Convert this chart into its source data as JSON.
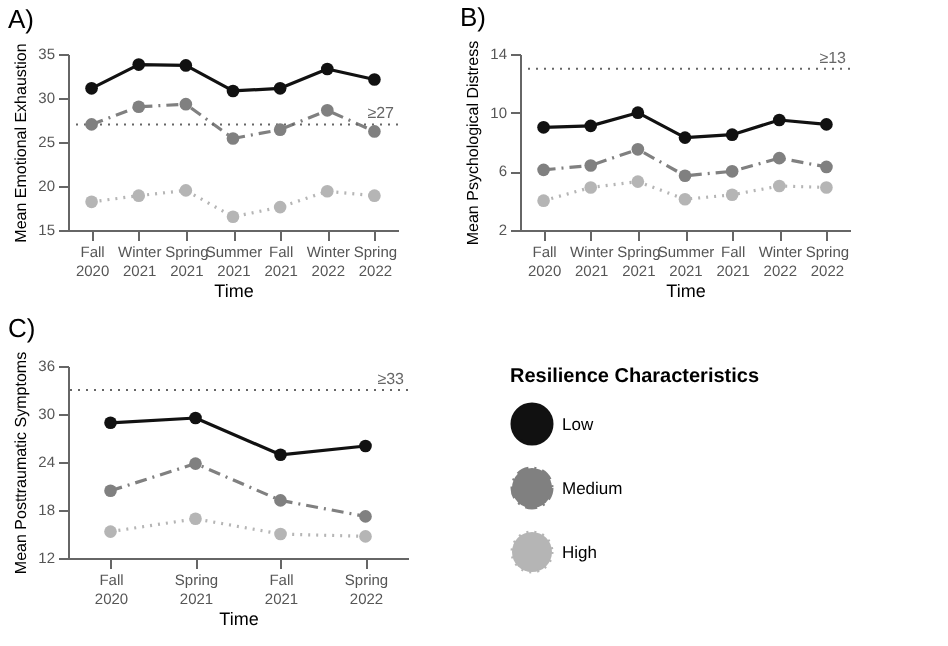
{
  "chart_data": [
    {
      "type": "line",
      "title": "A)",
      "xlabel": "Time",
      "ylabel": "Mean Emotional Exhaustion",
      "categories": [
        "Fall 2020",
        "Winter 2021",
        "Spring 2021",
        "Summer 2021",
        "Fall 2021",
        "Winter 2022",
        "Spring 2022"
      ],
      "ylim": [
        15,
        35
      ],
      "yticks": [
        15,
        20,
        25,
        30,
        35
      ],
      "grid": false,
      "marker": "circle",
      "legend": false,
      "ref_lines": [
        {
          "axis": "y",
          "value": 27,
          "label": "≥27",
          "color": "#666666",
          "line_style": "dotted"
        }
      ],
      "series": [
        {
          "color": "#111111",
          "line_style": "solid",
          "values": [
            31.1,
            33.8,
            33.7,
            30.8,
            31.1,
            33.3,
            32.1
          ]
        },
        {
          "color": "#808080",
          "line_style": "dashed",
          "values": [
            27.0,
            29.0,
            29.3,
            25.4,
            26.4,
            28.6,
            26.2
          ]
        },
        {
          "color": "#b5b5b5",
          "line_style": "dotted",
          "values": [
            18.2,
            18.9,
            19.5,
            16.5,
            17.6,
            19.4,
            18.9
          ]
        }
      ]
    },
    {
      "type": "line",
      "title": "B)",
      "xlabel": "Time",
      "ylabel": "Mean Psychological Distress",
      "categories": [
        "Fall 2020",
        "Winter 2021",
        "Spring 2021",
        "Summer 2021",
        "Fall 2021",
        "Winter 2022",
        "Spring 2022"
      ],
      "ylim": [
        2,
        14
      ],
      "yticks": [
        2,
        6,
        10,
        14
      ],
      "grid": false,
      "marker": "circle",
      "legend": false,
      "ref_lines": [
        {
          "axis": "y",
          "value": 13,
          "label": "≥13",
          "color": "#666666",
          "line_style": "dotted"
        }
      ],
      "series": [
        {
          "color": "#111111",
          "line_style": "solid",
          "values": [
            9.0,
            9.1,
            10.0,
            8.3,
            8.5,
            9.5,
            9.2
          ]
        },
        {
          "color": "#808080",
          "line_style": "dashed",
          "values": [
            6.1,
            6.4,
            7.5,
            5.7,
            6.0,
            6.9,
            6.3
          ]
        },
        {
          "color": "#b5b5b5",
          "line_style": "dotted",
          "values": [
            4.0,
            4.9,
            5.3,
            4.1,
            4.4,
            5.0,
            4.9
          ]
        }
      ]
    },
    {
      "type": "line",
      "title": "C)",
      "xlabel": "Time",
      "ylabel": "Mean Posttraumatic Symptoms",
      "legend_title": "Resilience Characteristics",
      "categories": [
        "Fall 2020",
        "Spring 2021",
        "Fall 2021",
        "Spring 2022"
      ],
      "ylim": [
        12,
        36
      ],
      "yticks": [
        12,
        18,
        24,
        30,
        36
      ],
      "grid": false,
      "marker": "circle",
      "legend": "right",
      "ref_lines": [
        {
          "axis": "y",
          "value": 33,
          "label": "≥33",
          "color": "#666666",
          "line_style": "dotted"
        }
      ],
      "series": [
        {
          "name": "Low",
          "color": "#111111",
          "line_style": "solid",
          "values": [
            28.9,
            29.5,
            24.9,
            26.0
          ]
        },
        {
          "name": "Medium",
          "color": "#808080",
          "line_style": "dashed",
          "values": [
            20.4,
            23.8,
            19.2,
            17.2
          ]
        },
        {
          "name": "High",
          "color": "#b5b5b5",
          "line_style": "dotted",
          "values": [
            15.3,
            16.9,
            15.0,
            14.7
          ]
        }
      ]
    }
  ]
}
